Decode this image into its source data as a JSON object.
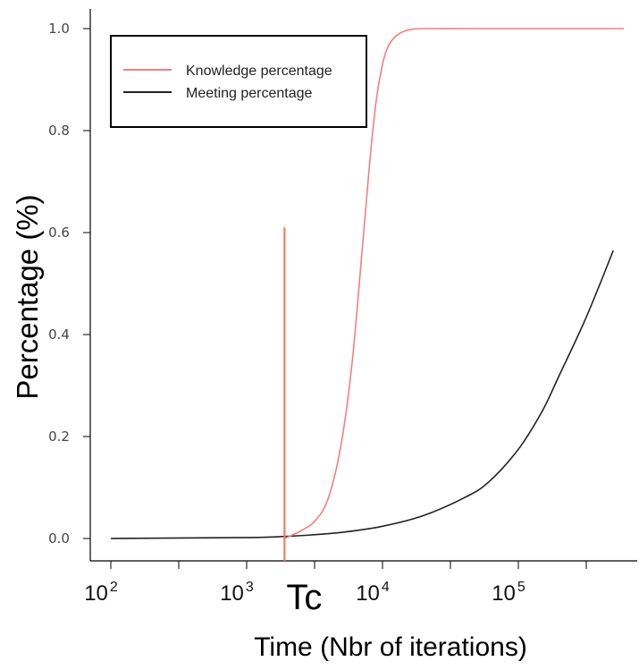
{
  "chart_data": {
    "type": "line",
    "title": "",
    "xlabel": "Time (Nbr of iterations)",
    "ylabel": "Percentage (%)",
    "x_scale": "log",
    "xlim": [
      100,
      600000
    ],
    "ylim": [
      0,
      1
    ],
    "x_ticks": [
      {
        "base": "10",
        "exp": "2",
        "value": 100
      },
      {
        "base": "10",
        "exp": "3",
        "value": 1000
      },
      {
        "base": "10",
        "exp": "4",
        "value": 10000
      },
      {
        "base": "10",
        "exp": "5",
        "value": 100000
      }
    ],
    "y_ticks": [
      {
        "label": "0.0",
        "value": 0
      },
      {
        "label": "0.2",
        "value": 0.2
      },
      {
        "label": "0.4",
        "value": 0.4
      },
      {
        "label": "0.6",
        "value": 0.6
      },
      {
        "label": "0.8",
        "value": 0.8
      },
      {
        "label": "1.0",
        "value": 1
      }
    ],
    "legend": {
      "position": "top-left",
      "entries": [
        {
          "label": "Knowledge percentage",
          "color": "#f08080"
        },
        {
          "label": "Meeting percentage",
          "color": "#222222"
        }
      ]
    },
    "annotation": {
      "label": "Tc",
      "x": 1900,
      "y_top": 0.61,
      "color": "#f07a6a"
    },
    "series": [
      {
        "name": "Knowledge percentage",
        "color": "#f08080",
        "x": [
          1900,
          2500,
          3200,
          4000,
          5000,
          6000,
          7000,
          8000,
          9000,
          10000,
          11000,
          12500,
          14500,
          17000,
          20000,
          50000,
          100000,
          200000,
          300000,
          600000
        ],
        "y": [
          0.0,
          0.015,
          0.035,
          0.08,
          0.19,
          0.35,
          0.55,
          0.73,
          0.86,
          0.93,
          0.965,
          0.985,
          0.995,
          0.999,
          1.0,
          1.0,
          1.0,
          1.0,
          1.0,
          1.0
        ]
      },
      {
        "name": "Meeting percentage",
        "color": "#222222",
        "x": [
          100,
          1000,
          1900,
          3000,
          5000,
          10000,
          20000,
          40000,
          60000,
          100000,
          150000,
          200000,
          300000,
          400000,
          500000
        ],
        "y": [
          0.0,
          0.002,
          0.004,
          0.007,
          0.012,
          0.024,
          0.045,
          0.08,
          0.11,
          0.175,
          0.25,
          0.32,
          0.42,
          0.5,
          0.565
        ]
      }
    ]
  }
}
